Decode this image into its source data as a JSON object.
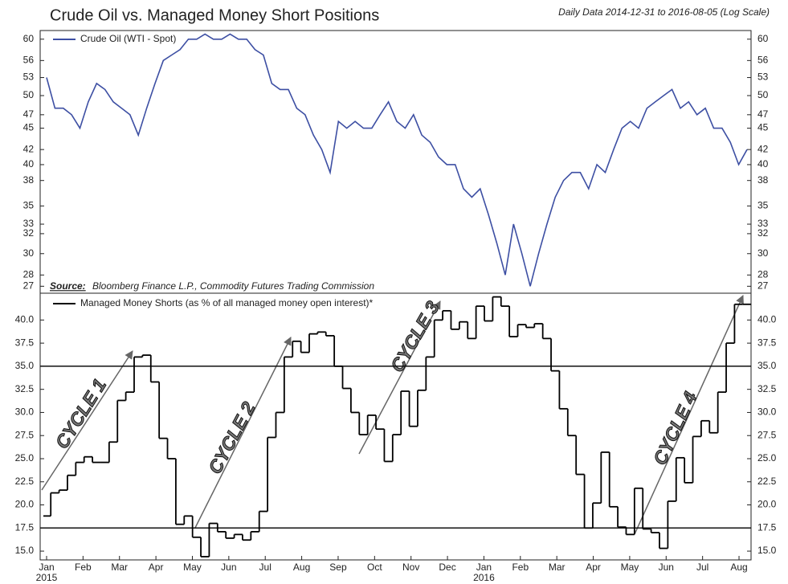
{
  "chart_data": [
    {
      "type": "line",
      "title": "Crude Oil vs. Managed Money Short Positions",
      "subtitle": "Daily Data 2014-12-31 to 2016-08-05 (Log Scale)",
      "log_scale": true,
      "series": [
        {
          "name": "Crude Oil (WTI - Spot)",
          "color": "#3d4fa3",
          "values": [
            53,
            48,
            48,
            47,
            45,
            49,
            52,
            51,
            49,
            48,
            47,
            44,
            48,
            52,
            56,
            57,
            58,
            60,
            60,
            61,
            60,
            60,
            61,
            60,
            60,
            58,
            57,
            52,
            51,
            51,
            48,
            47,
            44,
            42,
            39,
            46,
            45,
            46,
            45,
            45,
            47,
            49,
            46,
            45,
            47,
            44,
            43,
            41,
            40,
            40,
            37,
            36,
            37,
            34,
            31,
            28,
            33,
            30,
            27,
            30,
            33,
            36,
            38,
            39,
            39,
            37,
            40,
            39,
            42,
            45,
            46,
            45,
            48,
            49,
            50,
            51,
            48,
            49,
            47,
            48,
            45,
            45,
            43,
            40,
            42
          ]
        }
      ],
      "ylim": [
        26.4,
        61.7
      ],
      "yticks": [
        27,
        28,
        30,
        32,
        33,
        35,
        38,
        40,
        42,
        45,
        47,
        50,
        53,
        56,
        60
      ],
      "source_label": "Source:",
      "source": "Bloomberg Finance L.P., Commodity Futures Trading Commission"
    },
    {
      "type": "step",
      "series": [
        {
          "name": "Managed Money Shorts (as % of all managed money open interest)*",
          "color": "#000000",
          "values": [
            18.8,
            21.3,
            21.6,
            23.2,
            24.6,
            25.2,
            24.6,
            24.6,
            26.8,
            31.3,
            32.2,
            36.0,
            36.2,
            33.3,
            27.2,
            25.0,
            17.9,
            18.8,
            16.5,
            14.4,
            18.0,
            17.1,
            16.4,
            16.8,
            16.2,
            17.1,
            19.3,
            27.3,
            30.0,
            36.0,
            37.7,
            36.5,
            38.5,
            38.7,
            38.3,
            35.0,
            32.6,
            30.0,
            27.6,
            29.7,
            28.2,
            24.7,
            27.6,
            32.3,
            28.5,
            32.4,
            36.0,
            40.0,
            41.0,
            39.0,
            39.8,
            38.0,
            41.5,
            39.9,
            42.5,
            41.5,
            38.2,
            39.5,
            39.2,
            39.6,
            38.0,
            34.5,
            30.4,
            27.5,
            23.3,
            17.5,
            20.2,
            25.7,
            19.8,
            17.6,
            16.8,
            21.8,
            17.4,
            17.0,
            15.3,
            20.4,
            25.1,
            22.4,
            27.4,
            29.1,
            27.8,
            32.2,
            37.5,
            41.7,
            41.7
          ]
        }
      ],
      "ylim": [
        14.05,
        42.9
      ],
      "yticks": [
        {
          "value": 15,
          "label": "15.0"
        },
        17.5,
        {
          "value": 20,
          "label": "20.0"
        },
        22.5,
        {
          "value": 25,
          "label": "25.0"
        },
        27.5,
        {
          "value": 30,
          "label": "30.0"
        },
        32.5,
        {
          "value": 35,
          "label": "35.0"
        },
        37.5,
        {
          "value": 40,
          "label": "40.0"
        }
      ],
      "hlines": [
        35,
        17.5
      ],
      "annotations": [
        "CYCLE 1",
        "CYCLE 2",
        "CYCLE 3",
        "CYCLE 4"
      ],
      "month_labels": [
        "Jan",
        "Feb",
        "Mar",
        "Apr",
        "May",
        "Jun",
        "Jul",
        "Aug",
        "Sep",
        "Oct",
        "Nov",
        "Dec",
        "Jan",
        "Feb",
        "Mar",
        "Apr",
        "May",
        "Jun",
        "Jul",
        "Aug"
      ],
      "year_labels": [
        "2015",
        "2016"
      ]
    }
  ]
}
